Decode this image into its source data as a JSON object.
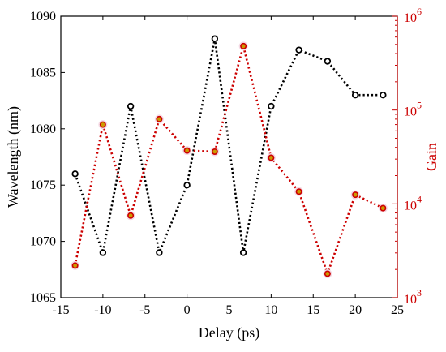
{
  "chart_data": {
    "type": "line",
    "xlabel": "Delay (ps)",
    "ylabel_left": "Wavelength (nm)",
    "ylabel_right": "Gain",
    "xlim": [
      -15,
      25
    ],
    "ylim_left": [
      1065,
      1090
    ],
    "ylim_right": [
      1000,
      1000000
    ],
    "right_axis_scale": "log",
    "x_ticks": [
      "-15",
      "-10",
      "-5",
      "0",
      "5",
      "10",
      "15",
      "20",
      "25"
    ],
    "x_tick_values": [
      -15,
      -10,
      -5,
      0,
      5,
      10,
      15,
      20,
      25
    ],
    "y_left_ticks": [
      "1065",
      "1070",
      "1075",
      "1080",
      "1085",
      "1090"
    ],
    "y_left_tick_values": [
      1065,
      1070,
      1075,
      1080,
      1085,
      1090
    ],
    "y_right_ticks": [
      {
        "base": "10",
        "exp": "3",
        "value": 1000
      },
      {
        "base": "10",
        "exp": "4",
        "value": 10000
      },
      {
        "base": "10",
        "exp": "5",
        "value": 100000
      },
      {
        "base": "10",
        "exp": "6",
        "value": 1000000
      }
    ],
    "grid": false,
    "series": [
      {
        "axis": "left",
        "color": "#000000",
        "marker": "circle",
        "x": [
          -13.3,
          -10,
          -6.7,
          -3.3,
          0,
          3.3,
          6.7,
          10,
          13.3,
          16.7,
          20,
          23.3
        ],
        "values": [
          1076,
          1069,
          1082,
          1069,
          1075,
          1088,
          1069,
          1082,
          1087,
          1086,
          1083,
          1083
        ]
      },
      {
        "axis": "right",
        "color": "#cc0000",
        "marker": "circle",
        "x": [
          -13.3,
          -10,
          -6.7,
          -3.3,
          0,
          3.3,
          6.7,
          10,
          13.3,
          16.7,
          20,
          23.3
        ],
        "values": [
          2200,
          70000,
          7500,
          80000,
          37000,
          36000,
          480000,
          31000,
          13500,
          1800,
          12500,
          9000
        ]
      }
    ]
  }
}
